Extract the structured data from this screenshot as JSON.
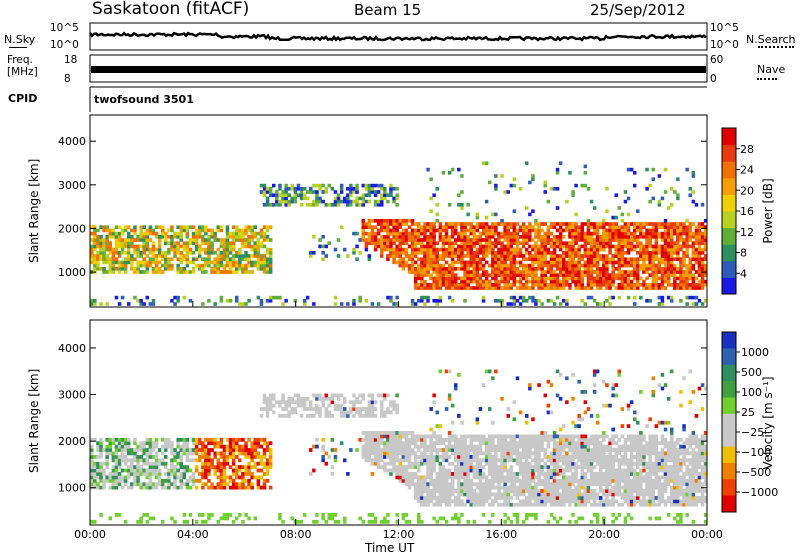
{
  "header": {
    "station": "Saskatoon (fitACF)",
    "beam": "Beam 15",
    "date": "25/Sep/2012"
  },
  "top_panels": {
    "nsky_label": "N.Sky",
    "nsearch_label": "N.Search",
    "count_ticks_left": [
      "10^5",
      "10^0"
    ],
    "count_ticks_right": [
      "10^5",
      "10^0"
    ],
    "freq_label_line1": "Freq.",
    "freq_label_line2": "[MHz]",
    "freq_ticks": [
      "18",
      "8"
    ],
    "nave_label": "Nave",
    "nave_ticks": [
      "60",
      "0"
    ],
    "cpid_label": "CPID",
    "cpid_value": "twofsound 3501"
  },
  "chart_data": [
    {
      "type": "heatmap",
      "name": "power",
      "ylabel": "Slant Range [km]",
      "xlabel": "",
      "yticks": [
        1000,
        2000,
        3000,
        4000
      ],
      "ylim": [
        200,
        4600
      ],
      "xlim_hours": [
        0,
        24
      ],
      "colorbar": {
        "label": "Power [dB]",
        "ticks": [
          "4",
          "8",
          "12",
          "16",
          "20",
          "24",
          "28"
        ],
        "colors": [
          "#1a1ae6",
          "#2e5cb8",
          "#2f8f5f",
          "#5fae3a",
          "#b8d020",
          "#f0d000",
          "#f5a000",
          "#f07000",
          "#e83a10",
          "#e00000"
        ]
      }
    },
    {
      "type": "heatmap",
      "name": "velocity",
      "ylabel": "Slant Range [km]",
      "xlabel": "Time UT",
      "yticks": [
        1000,
        2000,
        3000,
        4000
      ],
      "ylim": [
        200,
        4600
      ],
      "xlim_hours": [
        0,
        24
      ],
      "xticks": [
        "00:00",
        "04:00",
        "08:00",
        "12:00",
        "16:00",
        "20:00",
        "00:00"
      ],
      "colorbar": {
        "label": "Velocity [m s⁻¹]",
        "ticks": [
          "1000",
          "500",
          "100",
          "25",
          "−25",
          "−100",
          "−500",
          "−1000"
        ],
        "colors": [
          "#1830c0",
          "#2e60b0",
          "#2f8f5f",
          "#40a040",
          "#70d030",
          "#c8c8c8",
          "#c8c8c8",
          "#f0c000",
          "#f08000",
          "#f04000",
          "#e00000"
        ]
      }
    }
  ]
}
